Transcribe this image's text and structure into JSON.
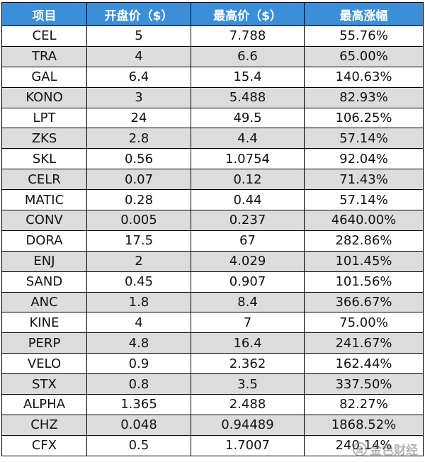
{
  "table": {
    "headers": [
      "项目",
      "开盘价（$）",
      "最高价（$）",
      "最高涨幅"
    ],
    "rows": [
      [
        "CEL",
        "5",
        "7.788",
        "55.76%"
      ],
      [
        "TRA",
        "4",
        "6.6",
        "65.00%"
      ],
      [
        "GAL",
        "6.4",
        "15.4",
        "140.63%"
      ],
      [
        "KONO",
        "3",
        "5.488",
        "82.93%"
      ],
      [
        "LPT",
        "24",
        "49.5",
        "106.25%"
      ],
      [
        "ZKS",
        "2.8",
        "4.4",
        "57.14%"
      ],
      [
        "SKL",
        "0.56",
        "1.0754",
        "92.04%"
      ],
      [
        "CELR",
        "0.07",
        "0.12",
        "71.43%"
      ],
      [
        "MATIC",
        "0.28",
        "0.44",
        "57.14%"
      ],
      [
        "CONV",
        "0.005",
        "0.237",
        "4640.00%"
      ],
      [
        "DORA",
        "17.5",
        "67",
        "282.86%"
      ],
      [
        "ENJ",
        "2",
        "4.029",
        "101.45%"
      ],
      [
        "SAND",
        "0.45",
        "0.907",
        "101.56%"
      ],
      [
        "ANC",
        "1.8",
        "8.4",
        "366.67%"
      ],
      [
        "KINE",
        "4",
        "7",
        "75.00%"
      ],
      [
        "PERP",
        "4.8",
        "16.4",
        "241.67%"
      ],
      [
        "VELO",
        "0.9",
        "2.362",
        "162.44%"
      ],
      [
        "STX",
        "0.8",
        "3.5",
        "337.50%"
      ],
      [
        "ALPHA",
        "1.365",
        "2.488",
        "82.27%"
      ],
      [
        "CHZ",
        "0.048",
        "0.94489",
        "1868.52%"
      ],
      [
        "CFX",
        "0.5",
        "1.7007",
        "240.14%"
      ]
    ]
  },
  "watermark": {
    "text": "金色财经",
    "logo_glyph": "金"
  },
  "colors": {
    "header_bg": "#3b8fd9",
    "header_text": "#ffffff",
    "stripe_bg": "#dcdcdc"
  }
}
